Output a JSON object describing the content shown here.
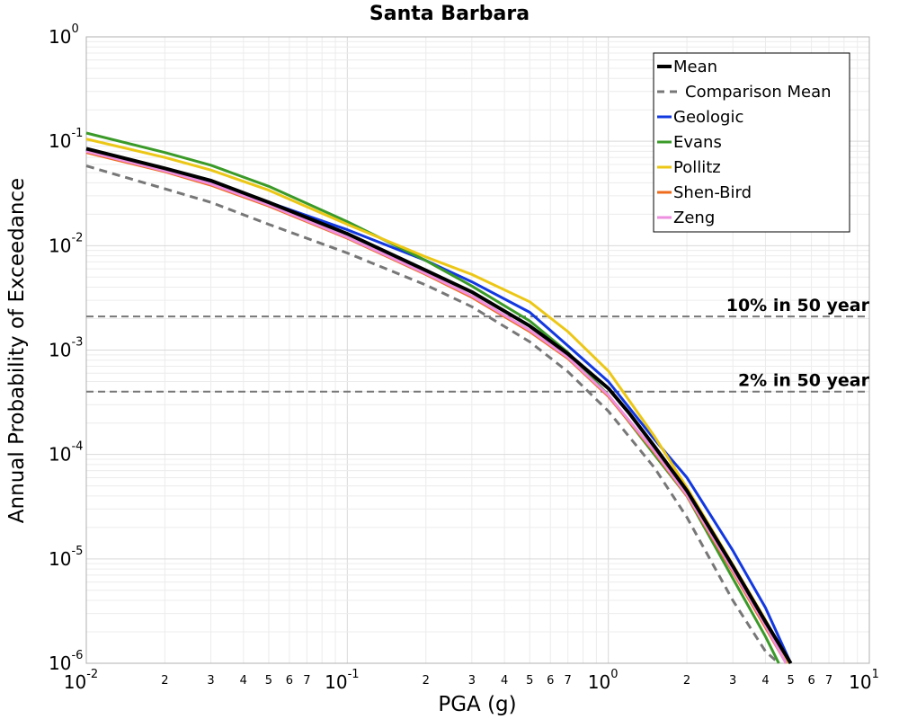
{
  "chart_data": {
    "type": "line",
    "title": "Santa Barbara",
    "xlabel": "PGA (g)",
    "ylabel": "Annual Probability of Exceedance",
    "x_scale": "log",
    "y_scale": "log",
    "xlim": [
      0.01,
      10
    ],
    "ylim": [
      1e-06,
      1
    ],
    "grid": true,
    "legend_position": "top-right",
    "x_major_ticks": [
      {
        "base": "10",
        "exp": "-2",
        "value": 0.01
      },
      {
        "base": "10",
        "exp": "-1",
        "value": 0.1
      },
      {
        "base": "10",
        "exp": "0",
        "value": 1
      },
      {
        "base": "10",
        "exp": "1",
        "value": 10
      }
    ],
    "y_major_ticks": [
      {
        "base": "10",
        "exp": "0",
        "value": 1
      },
      {
        "base": "10",
        "exp": "-1",
        "value": 0.1
      },
      {
        "base": "10",
        "exp": "-2",
        "value": 0.01
      },
      {
        "base": "10",
        "exp": "-3",
        "value": 0.001
      },
      {
        "base": "10",
        "exp": "-4",
        "value": 0.0001
      },
      {
        "base": "10",
        "exp": "-5",
        "value": 1e-05
      },
      {
        "base": "10",
        "exp": "-6",
        "value": 1e-06
      }
    ],
    "x_minor_tick_labels": [
      {
        "label": "2",
        "value": 0.02
      },
      {
        "label": "3",
        "value": 0.03
      },
      {
        "label": "4",
        "value": 0.04
      },
      {
        "label": "5",
        "value": 0.05
      },
      {
        "label": "6",
        "value": 0.06
      },
      {
        "label": "7",
        "value": 0.07
      },
      {
        "label": "2",
        "value": 0.2
      },
      {
        "label": "3",
        "value": 0.3
      },
      {
        "label": "4",
        "value": 0.4
      },
      {
        "label": "5",
        "value": 0.5
      },
      {
        "label": "6",
        "value": 0.6
      },
      {
        "label": "7",
        "value": 0.7
      },
      {
        "label": "2",
        "value": 2
      },
      {
        "label": "3",
        "value": 3
      },
      {
        "label": "4",
        "value": 4
      },
      {
        "label": "5",
        "value": 5
      },
      {
        "label": "6",
        "value": 6
      },
      {
        "label": "7",
        "value": 7
      }
    ],
    "reference_lines": [
      {
        "label": "10% in 50 year",
        "y": 0.0021,
        "color": "#777777"
      },
      {
        "label": "2% in 50 year",
        "y": 0.0004,
        "color": "#777777"
      }
    ],
    "series": [
      {
        "name": "Mean",
        "color": "#000000",
        "style": "solid",
        "points": [
          [
            0.01,
            0.085
          ],
          [
            0.02,
            0.055
          ],
          [
            0.03,
            0.042
          ],
          [
            0.05,
            0.026
          ],
          [
            0.1,
            0.013
          ],
          [
            0.2,
            0.0058
          ],
          [
            0.3,
            0.0036
          ],
          [
            0.5,
            0.0017
          ],
          [
            0.7,
            0.00092
          ],
          [
            1.0,
            0.00043
          ],
          [
            1.2,
            0.00025
          ],
          [
            1.5,
            0.00012
          ],
          [
            2.0,
            4.5e-05
          ],
          [
            3.0,
            8.5e-06
          ],
          [
            4.0,
            2.5e-06
          ],
          [
            5.0,
            1e-06
          ]
        ]
      },
      {
        "name": "Comparison Mean",
        "color": "#777777",
        "style": "dashed",
        "points": [
          [
            0.01,
            0.058
          ],
          [
            0.02,
            0.035
          ],
          [
            0.03,
            0.026
          ],
          [
            0.05,
            0.016
          ],
          [
            0.1,
            0.0085
          ],
          [
            0.2,
            0.0042
          ],
          [
            0.3,
            0.0026
          ],
          [
            0.5,
            0.0012
          ],
          [
            0.7,
            0.00062
          ],
          [
            1.0,
            0.00026
          ],
          [
            1.5,
            7.5e-05
          ],
          [
            2.0,
            2.5e-05
          ],
          [
            3.0,
            4e-06
          ],
          [
            4.0,
            1.3e-06
          ],
          [
            4.5,
            1e-06
          ]
        ]
      },
      {
        "name": "Geologic",
        "color": "#1238e0",
        "style": "solid",
        "points": [
          [
            0.01,
            0.082
          ],
          [
            0.02,
            0.054
          ],
          [
            0.03,
            0.041
          ],
          [
            0.05,
            0.026
          ],
          [
            0.1,
            0.0142
          ],
          [
            0.2,
            0.0072
          ],
          [
            0.3,
            0.0045
          ],
          [
            0.5,
            0.0023
          ],
          [
            0.7,
            0.0011
          ],
          [
            1.0,
            0.0005
          ],
          [
            1.5,
            0.00014
          ],
          [
            2.0,
            6e-05
          ],
          [
            3.0,
            1.2e-05
          ],
          [
            4.0,
            3.4e-06
          ],
          [
            5.0,
            1e-06
          ]
        ]
      },
      {
        "name": "Evans",
        "color": "#3a9a28",
        "style": "solid",
        "points": [
          [
            0.01,
            0.12
          ],
          [
            0.02,
            0.078
          ],
          [
            0.03,
            0.059
          ],
          [
            0.05,
            0.037
          ],
          [
            0.1,
            0.017
          ],
          [
            0.2,
            0.0072
          ],
          [
            0.3,
            0.0041
          ],
          [
            0.5,
            0.0019
          ],
          [
            0.7,
            0.00095
          ],
          [
            1.0,
            0.00037
          ],
          [
            1.5,
            0.0001
          ],
          [
            2.0,
            4e-05
          ],
          [
            3.0,
            6.5e-06
          ],
          [
            4.0,
            1.8e-06
          ],
          [
            4.5,
            1e-06
          ]
        ]
      },
      {
        "name": "Pollitz",
        "color": "#ecc716",
        "style": "solid",
        "points": [
          [
            0.01,
            0.105
          ],
          [
            0.02,
            0.07
          ],
          [
            0.03,
            0.053
          ],
          [
            0.05,
            0.034
          ],
          [
            0.1,
            0.016
          ],
          [
            0.2,
            0.0078
          ],
          [
            0.3,
            0.0053
          ],
          [
            0.5,
            0.0029
          ],
          [
            0.7,
            0.0015
          ],
          [
            1.0,
            0.00063
          ],
          [
            1.5,
            0.00015
          ],
          [
            2.0,
            4.8e-05
          ],
          [
            3.0,
            8.8e-06
          ],
          [
            4.0,
            2.6e-06
          ],
          [
            4.9,
            1e-06
          ]
        ]
      },
      {
        "name": "Shen-Bird",
        "color": "#ef6b1c",
        "style": "solid",
        "points": [
          [
            0.01,
            0.078
          ],
          [
            0.02,
            0.051
          ],
          [
            0.03,
            0.038
          ],
          [
            0.05,
            0.024
          ],
          [
            0.1,
            0.0118
          ],
          [
            0.2,
            0.0053
          ],
          [
            0.3,
            0.0032
          ],
          [
            0.5,
            0.0015
          ],
          [
            0.7,
            0.00083
          ],
          [
            1.0,
            0.00036
          ],
          [
            1.5,
            0.000105
          ],
          [
            2.0,
            4e-05
          ],
          [
            3.0,
            7.5e-06
          ],
          [
            4.0,
            2.2e-06
          ],
          [
            4.8,
            1e-06
          ]
        ]
      },
      {
        "name": "Zeng",
        "color": "#ee8fe0",
        "style": "solid",
        "points": [
          [
            0.01,
            0.08
          ],
          [
            0.02,
            0.052
          ],
          [
            0.03,
            0.039
          ],
          [
            0.05,
            0.0245
          ],
          [
            0.1,
            0.012
          ],
          [
            0.2,
            0.0054
          ],
          [
            0.3,
            0.0033
          ],
          [
            0.5,
            0.00155
          ],
          [
            0.7,
            0.00085
          ],
          [
            1.0,
            0.00037
          ],
          [
            1.5,
            0.000108
          ],
          [
            2.0,
            4.1e-05
          ],
          [
            3.0,
            7.8e-06
          ],
          [
            4.0,
            2.3e-06
          ],
          [
            4.8,
            1e-06
          ]
        ]
      }
    ]
  }
}
